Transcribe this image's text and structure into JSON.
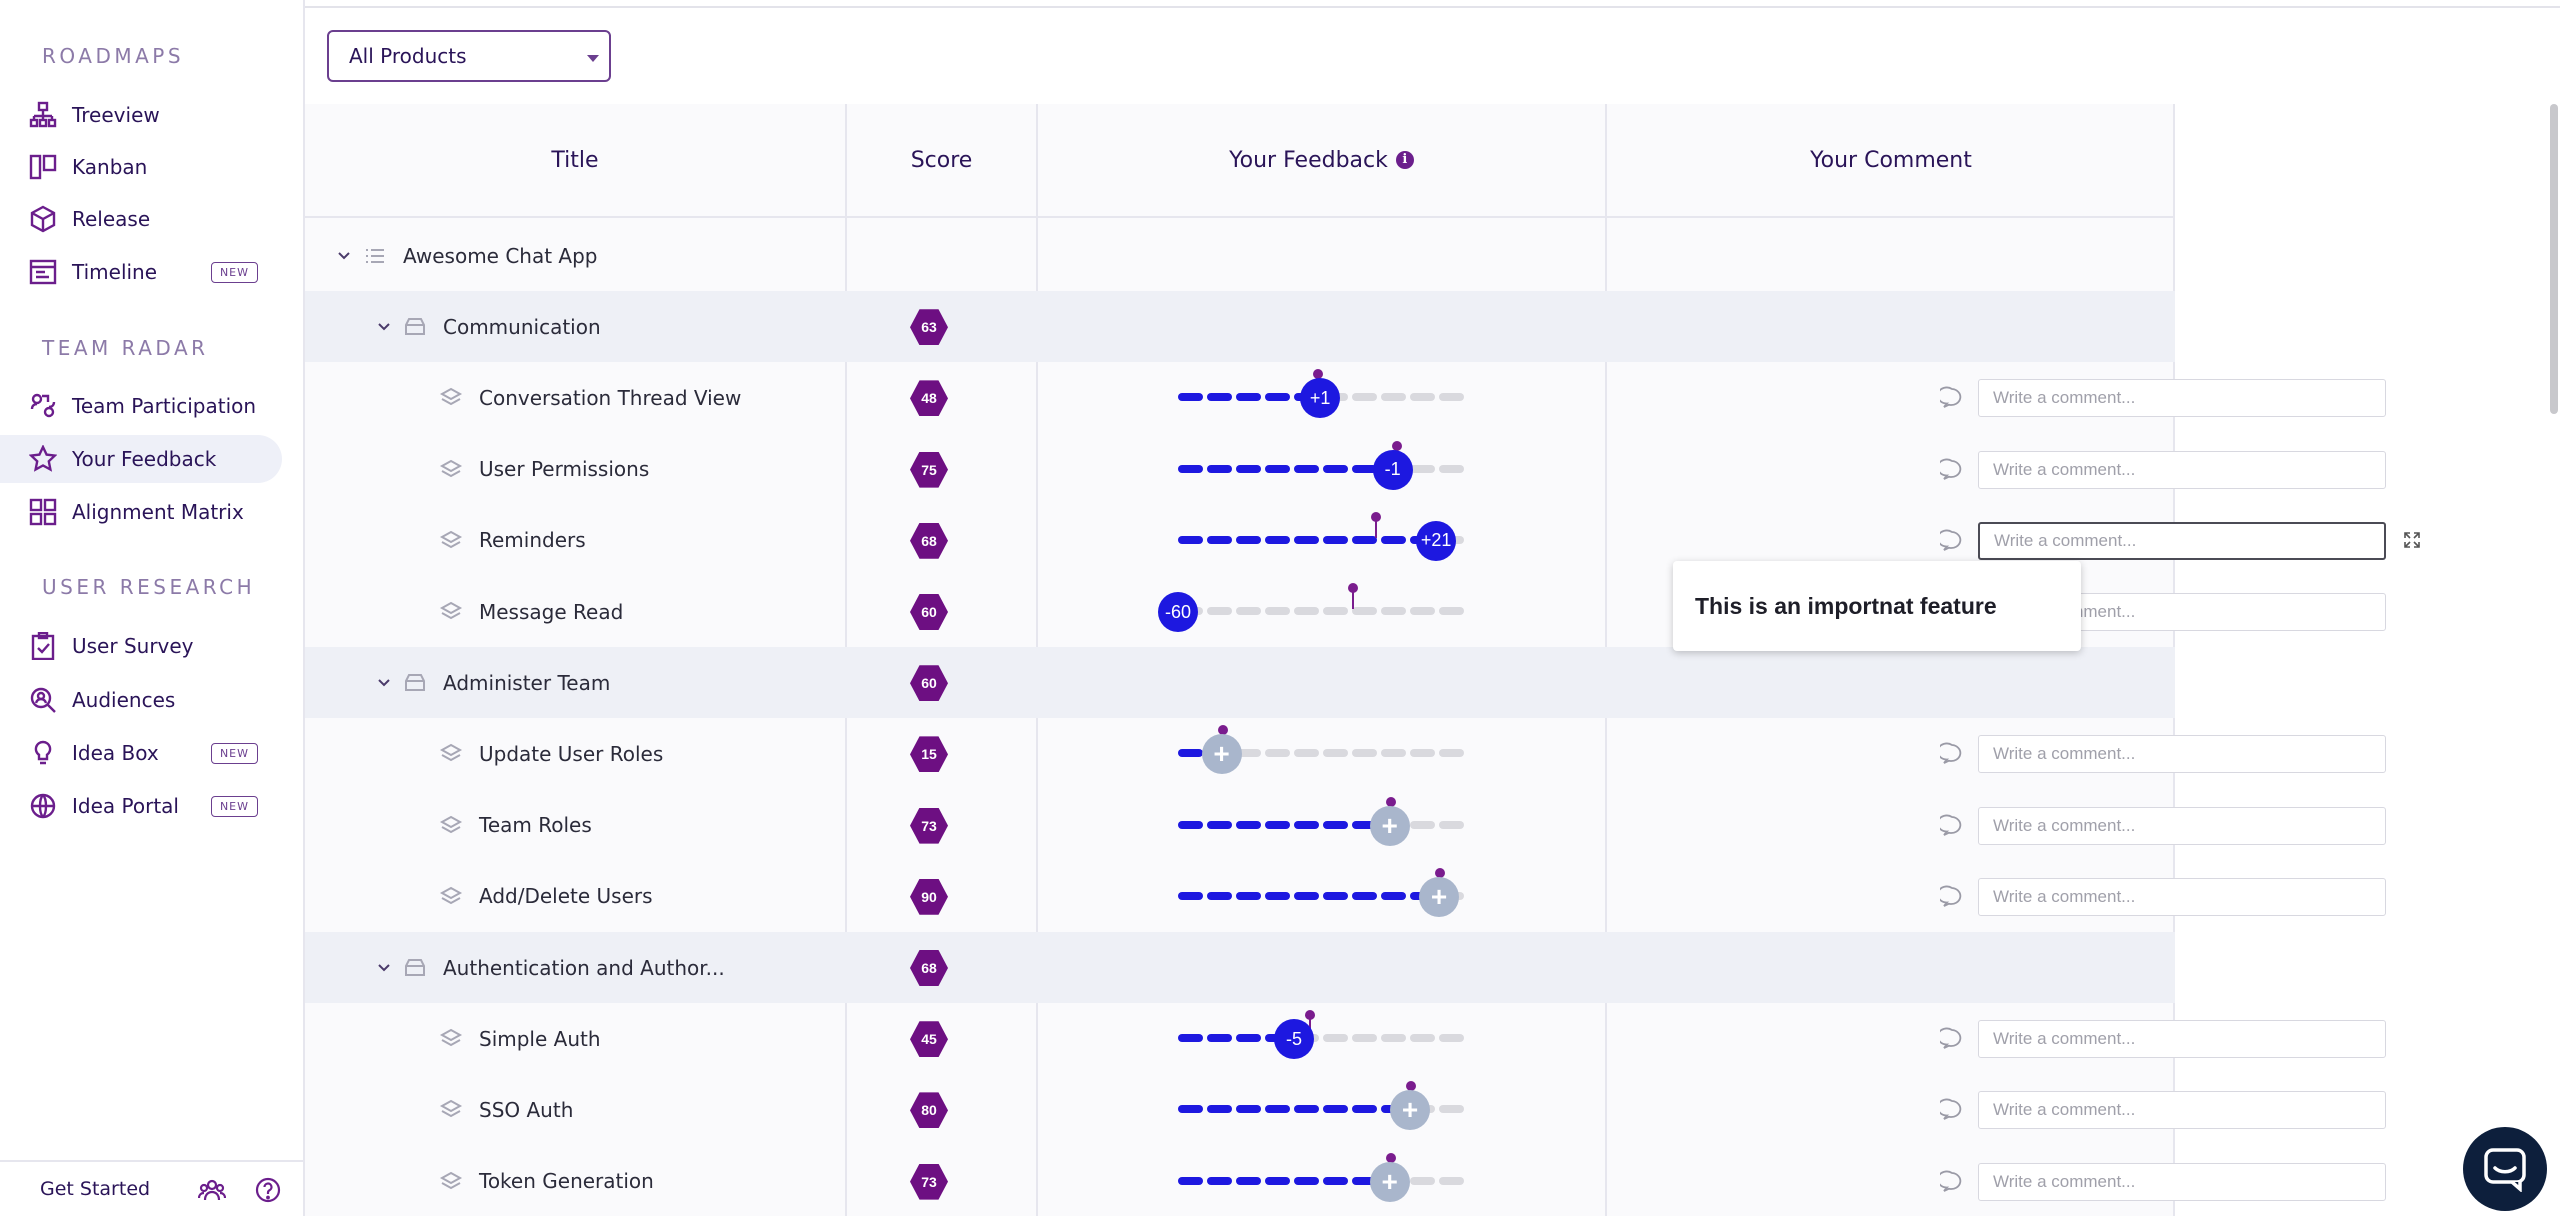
{
  "sidebar": {
    "sections": [
      {
        "heading": "ROADMAPS",
        "items": [
          {
            "label": "Treeview",
            "icon": "tree-icon"
          },
          {
            "label": "Kanban",
            "icon": "kanban-icon"
          },
          {
            "label": "Release",
            "icon": "box-icon"
          },
          {
            "label": "Timeline",
            "icon": "calendar-icon",
            "badge": "NEW"
          }
        ]
      },
      {
        "heading": "TEAM RADAR",
        "items": [
          {
            "label": "Team Participation",
            "icon": "participation-icon"
          },
          {
            "label": "Your Feedback",
            "icon": "star-icon",
            "active": true
          },
          {
            "label": "Alignment Matrix",
            "icon": "grid-icon"
          }
        ]
      },
      {
        "heading": "USER RESEARCH",
        "items": [
          {
            "label": "User Survey",
            "icon": "clipboard-check-icon"
          },
          {
            "label": "Audiences",
            "icon": "audience-search-icon"
          },
          {
            "label": "Idea Box",
            "icon": "lightbulb-icon",
            "badge": "NEW"
          },
          {
            "label": "Idea Portal",
            "icon": "globe-icon",
            "badge": "NEW"
          }
        ]
      }
    ],
    "footer": {
      "get_started": "Get Started",
      "icons": [
        "team-icon",
        "help-icon"
      ]
    }
  },
  "toolbar": {
    "product_filter": "All Products"
  },
  "table": {
    "columns": [
      "Title",
      "Score",
      "Your Feedback",
      "Your Comment"
    ],
    "comment_placeholder": "Write a comment...",
    "rows": [
      {
        "level": 0,
        "type": "product",
        "title": "Awesome Chat App"
      },
      {
        "level": 1,
        "type": "group",
        "title": "Communication",
        "score": "63"
      },
      {
        "level": 2,
        "type": "feature",
        "title": "Conversation Thread View",
        "score": "48",
        "feedback": "+1",
        "feedback_value": 49
      },
      {
        "level": 2,
        "type": "feature",
        "title": "User Permissions",
        "score": "75",
        "feedback": "-1",
        "feedback_value": 74
      },
      {
        "level": 2,
        "type": "feature",
        "title": "Reminders",
        "score": "68",
        "feedback": "+21",
        "feedback_value": 89,
        "focused": true
      },
      {
        "level": 2,
        "type": "feature",
        "title": "Message Read",
        "score": "60",
        "feedback": "-60",
        "feedback_value": 0
      },
      {
        "level": 1,
        "type": "group",
        "title": "Administer Team",
        "score": "60"
      },
      {
        "level": 2,
        "type": "feature",
        "title": "Update User Roles",
        "score": "15",
        "feedback": "+",
        "feedback_value": 15
      },
      {
        "level": 2,
        "type": "feature",
        "title": "Team Roles",
        "score": "73",
        "feedback": "+",
        "feedback_value": 73
      },
      {
        "level": 2,
        "type": "feature",
        "title": "Add/Delete Users",
        "score": "90",
        "feedback": "+",
        "feedback_value": 90
      },
      {
        "level": 1,
        "type": "group",
        "title": "Authentication and Author...",
        "score": "68"
      },
      {
        "level": 2,
        "type": "feature",
        "title": "Simple Auth",
        "score": "45",
        "feedback": "-5",
        "feedback_value": 40
      },
      {
        "level": 2,
        "type": "feature",
        "title": "SSO Auth",
        "score": "80",
        "feedback": "+",
        "feedback_value": 80
      },
      {
        "level": 2,
        "type": "feature",
        "title": "Token Generation",
        "score": "73",
        "feedback": "+",
        "feedback_value": 73
      }
    ]
  },
  "popover": {
    "text": "This is an importnat feature"
  },
  "colors": {
    "accent": "#6b1e8c",
    "slider_active": "#1d18e0",
    "slider_neutral": "#a9b6cc",
    "score_badge": "#6d0f82"
  }
}
